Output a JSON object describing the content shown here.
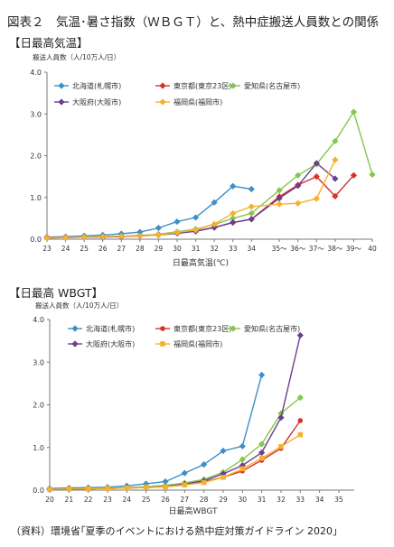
{
  "title": "図表２　気温･暑さ指数（ＷＢＧＴ）と、熱中症搬送人員数との関係",
  "footer": "（資料）環境省｢夏季のイベントにおける熱中症対策ガイドライン 2020｣",
  "colors": {
    "hokkaido": "#3d8fc7",
    "tokyo": "#d6332b",
    "aichi": "#85c64e",
    "osaka": "#6a3f8e",
    "fukuoka": "#f5b12d"
  },
  "chart_data": [
    {
      "type": "line",
      "section_title": "【日最高気温】",
      "ylabel": "搬送人員数（人/10万人/日）",
      "xlabel": "日最高気温(℃)",
      "categories": [
        "23",
        "24",
        "25",
        "26",
        "27",
        "28",
        "29",
        "30",
        "31",
        "32",
        "33",
        "34",
        "35～",
        "36～",
        "37～",
        "38～",
        "39～",
        "40"
      ],
      "ylim": [
        0,
        4.0
      ],
      "yticks": [
        "0.0",
        "1.0",
        "2.0",
        "3.0",
        "4.0"
      ],
      "grid": false,
      "legend": "top-left",
      "series": [
        {
          "name": "北海道(札幌市)",
          "key": "hokkaido",
          "marker": "diamond",
          "points": [
            [
              23,
              0.05
            ],
            [
              24,
              0.06
            ],
            [
              25,
              0.08
            ],
            [
              26,
              0.1
            ],
            [
              27,
              0.13
            ],
            [
              28,
              0.17
            ],
            [
              29,
              0.27
            ],
            [
              30,
              0.42
            ],
            [
              31,
              0.52
            ],
            [
              32,
              0.88
            ],
            [
              33,
              1.27
            ],
            [
              34,
              1.2
            ]
          ]
        },
        {
          "name": "東京都(東京23区)",
          "key": "tokyo",
          "marker": "diamond",
          "points": [
            [
              23,
              0.04
            ],
            [
              24,
              0.05
            ],
            [
              25,
              0.05
            ],
            [
              26,
              0.06
            ],
            [
              27,
              0.07
            ],
            [
              28,
              0.09
            ],
            [
              29,
              0.11
            ],
            [
              30,
              0.15
            ],
            [
              31,
              0.2
            ],
            [
              32,
              0.28
            ],
            [
              33,
              0.4
            ],
            [
              34,
              0.48
            ],
            [
              35.5,
              1.02
            ],
            [
              36.5,
              1.3
            ],
            [
              37.5,
              1.5
            ],
            [
              38.5,
              1.03
            ],
            [
              39.5,
              1.53
            ]
          ]
        },
        {
          "name": "愛知県(名古屋市)",
          "key": "aichi",
          "marker": "diamond",
          "points": [
            [
              23,
              0.03
            ],
            [
              24,
              0.04
            ],
            [
              25,
              0.05
            ],
            [
              26,
              0.06
            ],
            [
              27,
              0.07
            ],
            [
              28,
              0.08
            ],
            [
              29,
              0.12
            ],
            [
              30,
              0.18
            ],
            [
              31,
              0.24
            ],
            [
              32,
              0.35
            ],
            [
              33,
              0.5
            ],
            [
              34,
              0.62
            ],
            [
              35.5,
              1.17
            ],
            [
              36.5,
              1.53
            ],
            [
              37.5,
              1.8
            ],
            [
              38.5,
              2.35
            ],
            [
              39.5,
              3.05
            ],
            [
              40.5,
              1.55
            ]
          ]
        },
        {
          "name": "大阪府(大阪市)",
          "key": "osaka",
          "marker": "diamond",
          "points": [
            [
              23,
              0.03
            ],
            [
              24,
              0.04
            ],
            [
              25,
              0.05
            ],
            [
              26,
              0.05
            ],
            [
              27,
              0.06
            ],
            [
              28,
              0.08
            ],
            [
              29,
              0.1
            ],
            [
              30,
              0.14
            ],
            [
              31,
              0.19
            ],
            [
              32,
              0.28
            ],
            [
              33,
              0.4
            ],
            [
              34,
              0.48
            ],
            [
              35.5,
              0.98
            ],
            [
              36.5,
              1.28
            ],
            [
              37.5,
              1.82
            ],
            [
              38.5,
              1.45
            ]
          ]
        },
        {
          "name": "福岡県(福岡市)",
          "key": "fukuoka",
          "marker": "diamond",
          "points": [
            [
              23,
              0.03
            ],
            [
              24,
              0.04
            ],
            [
              25,
              0.05
            ],
            [
              26,
              0.06
            ],
            [
              27,
              0.07
            ],
            [
              28,
              0.08
            ],
            [
              29,
              0.1
            ],
            [
              30,
              0.16
            ],
            [
              31,
              0.22
            ],
            [
              32,
              0.36
            ],
            [
              33,
              0.62
            ],
            [
              34,
              0.78
            ],
            [
              35.5,
              0.84
            ],
            [
              36.5,
              0.86
            ],
            [
              37.5,
              0.97
            ],
            [
              38.5,
              1.9
            ]
          ]
        }
      ]
    },
    {
      "type": "line",
      "section_title": "【日最高 WBGT】",
      "ylabel": "搬送人員数（人/10万人/日）",
      "xlabel": "日最高WBGT",
      "categories": [
        "20",
        "21",
        "22",
        "23",
        "24",
        "25",
        "26",
        "27",
        "28",
        "29",
        "30",
        "31",
        "32",
        "33",
        "34",
        "35"
      ],
      "ylim": [
        0,
        4.0
      ],
      "yticks": [
        "0.0",
        "1.0",
        "2.0",
        "3.0",
        "4.0"
      ],
      "grid": false,
      "legend": "top-left",
      "series": [
        {
          "name": "北海道(札幌市)",
          "key": "hokkaido",
          "marker": "diamond",
          "points": [
            [
              20,
              0.04
            ],
            [
              21,
              0.05
            ],
            [
              22,
              0.06
            ],
            [
              23,
              0.07
            ],
            [
              24,
              0.1
            ],
            [
              25,
              0.15
            ],
            [
              26,
              0.2
            ],
            [
              27,
              0.4
            ],
            [
              28,
              0.6
            ],
            [
              29,
              0.92
            ],
            [
              30,
              1.03
            ],
            [
              31,
              2.7
            ]
          ]
        },
        {
          "name": "東京都(東京23区)",
          "key": "tokyo",
          "marker": "circle",
          "points": [
            [
              20,
              0.02
            ],
            [
              21,
              0.03
            ],
            [
              22,
              0.03
            ],
            [
              23,
              0.04
            ],
            [
              24,
              0.05
            ],
            [
              25,
              0.06
            ],
            [
              26,
              0.08
            ],
            [
              27,
              0.12
            ],
            [
              28,
              0.2
            ],
            [
              29,
              0.3
            ],
            [
              30,
              0.45
            ],
            [
              31,
              0.7
            ],
            [
              32,
              0.98
            ],
            [
              33,
              1.63
            ]
          ]
        },
        {
          "name": "愛知県(名古屋市)",
          "key": "aichi",
          "marker": "diamond",
          "points": [
            [
              20,
              0.02
            ],
            [
              21,
              0.03
            ],
            [
              22,
              0.04
            ],
            [
              23,
              0.05
            ],
            [
              24,
              0.06
            ],
            [
              25,
              0.08
            ],
            [
              26,
              0.11
            ],
            [
              27,
              0.17
            ],
            [
              28,
              0.25
            ],
            [
              29,
              0.42
            ],
            [
              30,
              0.72
            ],
            [
              31,
              1.08
            ],
            [
              32,
              1.8
            ],
            [
              33,
              2.17
            ]
          ]
        },
        {
          "name": "大阪府(大阪市)",
          "key": "osaka",
          "marker": "diamond",
          "points": [
            [
              20,
              0.02
            ],
            [
              21,
              0.03
            ],
            [
              22,
              0.03
            ],
            [
              23,
              0.04
            ],
            [
              24,
              0.05
            ],
            [
              25,
              0.06
            ],
            [
              26,
              0.09
            ],
            [
              27,
              0.14
            ],
            [
              28,
              0.22
            ],
            [
              29,
              0.38
            ],
            [
              30,
              0.58
            ],
            [
              31,
              0.88
            ],
            [
              32,
              1.7
            ],
            [
              33,
              3.63
            ]
          ]
        },
        {
          "name": "福岡県(福岡市)",
          "key": "fukuoka",
          "marker": "square",
          "points": [
            [
              20,
              0.02
            ],
            [
              21,
              0.03
            ],
            [
              22,
              0.03
            ],
            [
              23,
              0.04
            ],
            [
              24,
              0.05
            ],
            [
              25,
              0.06
            ],
            [
              26,
              0.08
            ],
            [
              27,
              0.12
            ],
            [
              28,
              0.18
            ],
            [
              29,
              0.3
            ],
            [
              30,
              0.5
            ],
            [
              31,
              0.75
            ],
            [
              32,
              1.02
            ],
            [
              33,
              1.3
            ]
          ]
        }
      ]
    }
  ]
}
